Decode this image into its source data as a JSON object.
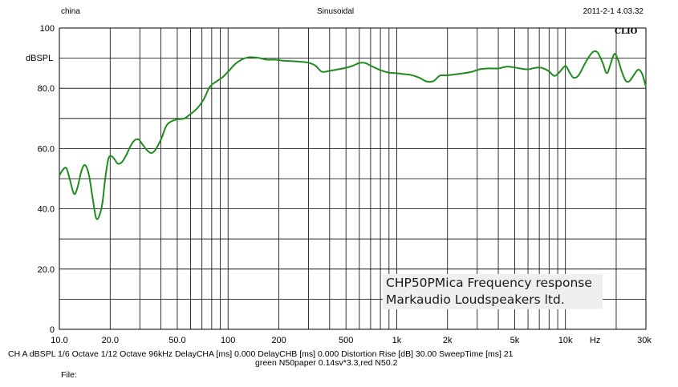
{
  "header": {
    "left": "china",
    "center": "Sinusoidal",
    "right": "2011-2-1 4.03.32"
  },
  "brand": "CLIO",
  "annotation": {
    "line1": "CHP50PMica  Frequency response",
    "line2": "Markaudio Loudspeakers ltd."
  },
  "footer": {
    "line1": "CH A   dBSPL   1/6 Octave   1/12 Octave   96kHz   DelayCHA [ms] 0.000    DelayCHB [ms] 0.000    Distortion Rise [dB] 30.00    SweepTime [ms] 21",
    "line2": "green N50paper 0.14sv*3.3,red N50.2",
    "line3": "File:"
  },
  "colors": {
    "curve": "#1e8c1e",
    "grid": "#000000",
    "annotation_bg": "#efefef"
  },
  "chart_data": {
    "type": "line",
    "x_scale": "log",
    "xlim": [
      10,
      30000
    ],
    "ylim": [
      0,
      100
    ],
    "ylabel": "dBSPL",
    "xlabel_unit": "Hz",
    "y_ticks": [
      {
        "value": 100,
        "label": "100"
      },
      {
        "value": 80,
        "label": "80.0"
      },
      {
        "value": 60,
        "label": "60.0"
      },
      {
        "value": 40,
        "label": "40.0"
      },
      {
        "value": 20,
        "label": "20.0"
      },
      {
        "value": 0,
        "label": "0"
      }
    ],
    "x_ticks": [
      {
        "value": 10,
        "label": "10.0"
      },
      {
        "value": 20,
        "label": "20.0"
      },
      {
        "value": 50,
        "label": "50.0"
      },
      {
        "value": 100,
        "label": "100"
      },
      {
        "value": 200,
        "label": "200"
      },
      {
        "value": 500,
        "label": "500"
      },
      {
        "value": 1000,
        "label": "1k"
      },
      {
        "value": 2000,
        "label": "2k"
      },
      {
        "value": 5000,
        "label": "5k"
      },
      {
        "value": 10000,
        "label": "10k"
      },
      {
        "value": 15000,
        "label": "Hz"
      },
      {
        "value": 30000,
        "label": "30k"
      }
    ],
    "grid": true,
    "series": [
      {
        "x": [
          10,
          10.5,
          11,
          11.5,
          12.2,
          12.8,
          13.5,
          14.2,
          15.0,
          15.8,
          16.5,
          17.2,
          18.0,
          18.7,
          19.5,
          20.3,
          21.2,
          22.2,
          23.5,
          25,
          26.5,
          28,
          29.5,
          31,
          33,
          35,
          37,
          40,
          43,
          46,
          50,
          55,
          60,
          66,
          72,
          78,
          85,
          92,
          100,
          110,
          120,
          130,
          140,
          155,
          170,
          190,
          210,
          240,
          270,
          300,
          330,
          360,
          400,
          450,
          500,
          550,
          600,
          650,
          700,
          800,
          900,
          1000,
          1100,
          1200,
          1350,
          1500,
          1650,
          1800,
          2000,
          2200,
          2500,
          2800,
          3100,
          3500,
          4000,
          4500,
          5000,
          5500,
          6000,
          6500,
          7000,
          7500,
          8000,
          8600,
          9200,
          10000,
          10600,
          11200,
          12000,
          13000,
          14000,
          14800,
          15600,
          16600,
          17600,
          18500,
          19500,
          20500,
          21600,
          22800,
          24000,
          25500,
          27000,
          28500,
          30000
        ],
        "y": [
          51,
          53,
          53.5,
          50,
          45,
          47,
          52.5,
          54.5,
          51,
          43,
          37,
          37.5,
          42,
          50,
          56.5,
          57.5,
          56.5,
          55,
          55.5,
          58,
          61,
          62.8,
          63,
          61.5,
          59.5,
          58.5,
          59.5,
          63,
          67.5,
          69,
          69.7,
          70,
          71.5,
          73.5,
          76.5,
          80.5,
          82.2,
          83.5,
          85.5,
          88,
          89.5,
          90.2,
          90.3,
          90,
          89.5,
          89.5,
          89.2,
          89,
          88.8,
          88.5,
          87.5,
          85.5,
          85.8,
          86.3,
          86.8,
          87.5,
          88.4,
          88.4,
          87.5,
          86,
          85.2,
          85,
          84.7,
          84.5,
          83.6,
          82.3,
          82.4,
          84.2,
          84.3,
          84.6,
          85,
          85.5,
          86.3,
          86.6,
          86.6,
          87.2,
          86.9,
          86.5,
          86.3,
          86.7,
          86.9,
          86.5,
          85.6,
          84.1,
          85.3,
          87.4,
          85.2,
          83.5,
          84.4,
          88,
          91,
          92.3,
          91.7,
          88.5,
          85,
          88,
          91.4,
          89.5,
          85.5,
          82.5,
          82.4,
          84.5,
          86.2,
          84.8,
          80.5
        ]
      }
    ]
  }
}
